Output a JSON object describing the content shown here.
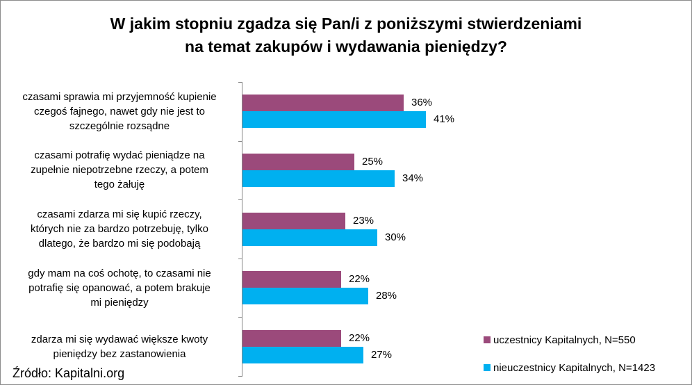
{
  "chart_data": {
    "type": "bar",
    "orientation": "horizontal",
    "title_lines": [
      "W jakim stopniu zgadza się  Pan/i z poniższymi stwierdzeniami",
      "na temat zakupów i wydawania pieniędzy?"
    ],
    "categories": [
      [
        "czasami sprawia mi przyjemność kupienie",
        "czegoś fajnego, nawet gdy nie jest to",
        "szczególnie rozsądne"
      ],
      [
        "czasami potrafię wydać pieniądze na",
        "zupełnie niepotrzebne rzeczy, a potem",
        "tego żałuję"
      ],
      [
        "czasami zdarza mi się kupić rzeczy,",
        "których nie za bardzo potrzebuję, tylko",
        "dlatego, że bardzo mi się podobają"
      ],
      [
        "gdy mam na coś ochotę, to czasami nie",
        "potrafię się opanować, a potem brakuje",
        "mi pieniędzy"
      ],
      [
        "zdarza mi się wydawać większe kwoty",
        "pieniędzy bez zastanowienia"
      ]
    ],
    "series": [
      {
        "name": "uczestnicy Kapitalnych, N=550",
        "color": "#9b4a7b",
        "values": [
          36,
          25,
          23,
          22,
          22
        ],
        "labels": [
          "36%",
          "25%",
          "23%",
          "22%",
          "22%"
        ]
      },
      {
        "name": "nieuczestnicy Kapitalnych, N=1423",
        "color": "#00b0f0",
        "values": [
          41,
          34,
          30,
          28,
          27
        ],
        "labels": [
          "41%",
          "34%",
          "30%",
          "28%",
          "27%"
        ]
      }
    ],
    "unit": "%",
    "xlim": [
      0,
      100
    ],
    "grid": false,
    "legend_position": "bottom-right"
  },
  "source": "Źródło: Kapitalni.org"
}
